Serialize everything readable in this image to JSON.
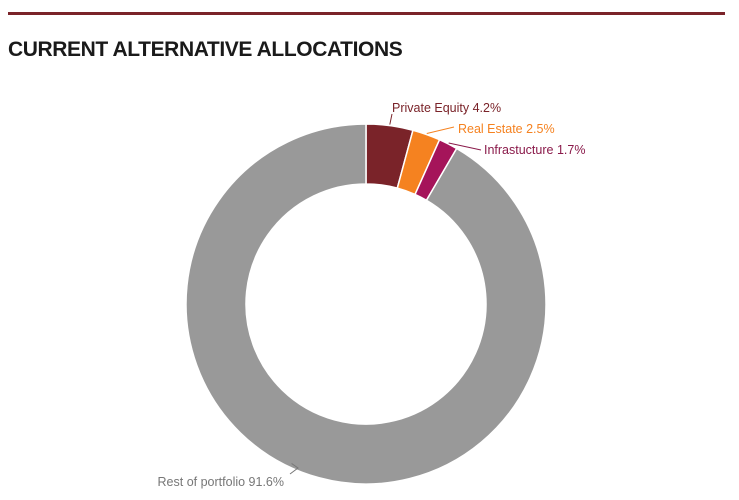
{
  "title": "CURRENT ALTERNATIVE ALLOCATIONS",
  "colors": {
    "rule": "#7a2329",
    "title": "#1a1a1a",
    "label_default": "#777777"
  },
  "chart_data": {
    "type": "pie",
    "style": "donut",
    "title": "CURRENT ALTERNATIVE ALLOCATIONS",
    "unit": "%",
    "slices": [
      {
        "label": "Private Equity",
        "value": 4.2,
        "display": "Private Equity 4.2%",
        "color": "#7a2329",
        "label_color": "#7a2329"
      },
      {
        "label": "Real Estate",
        "value": 2.5,
        "display": "Real Estate 2.5%",
        "color": "#f58220",
        "label_color": "#f58220"
      },
      {
        "label": "Infrastucture",
        "value": 1.7,
        "display": "Infrastucture 1.7%",
        "color": "#a5145a",
        "label_color": "#8a1a4a"
      },
      {
        "label": "Rest of portfolio",
        "value": 91.6,
        "display": "Rest of portfolio 91.6%",
        "color": "#999999",
        "label_color": "#777777"
      }
    ]
  }
}
